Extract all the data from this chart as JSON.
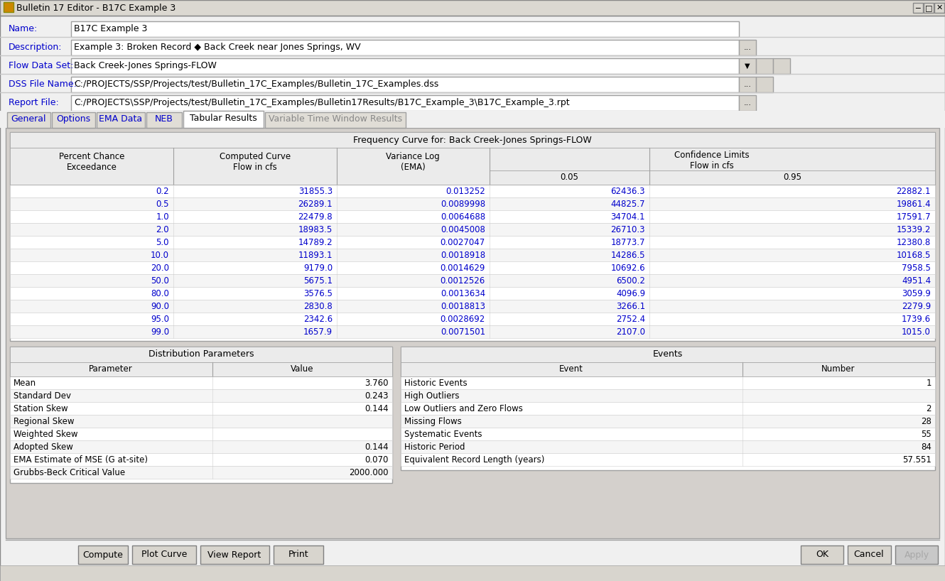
{
  "title_bar": "Bulletin 17 Editor - B17C Example 3",
  "name_label": "Name:",
  "name_value": "B17C Example 3",
  "desc_label": "Description:",
  "desc_value": "Example 3: Broken Record ◆ Back Creek near Jones Springs, WV",
  "flow_label": "Flow Data Set:",
  "flow_value": "Back Creek-Jones Springs-FLOW",
  "dss_label": "DSS File Name:",
  "dss_value": "C:/PROJECTS/SSP/Projects/test/Bulletin_17C_Examples/Bulletin_17C_Examples.dss",
  "report_label": "Report File:",
  "report_value": "C:/PROJECTS\\SSP/Projects/test/Bulletin_17C_Examples/Bulletin17Results/B17C_Example_3\\B17C_Example_3.rpt",
  "tabs": [
    "General",
    "Options",
    "EMA Data",
    "NEB",
    "Tabular Results",
    "Variable Time Window Results"
  ],
  "active_tab": "Tabular Results",
  "freq_table_title": "Frequency Curve for: Back Creek-Jones Springs-FLOW",
  "freq_data": [
    [
      "0.2",
      "31855.3",
      "0.013252",
      "62436.3",
      "22882.1"
    ],
    [
      "0.5",
      "26289.1",
      "0.0089998",
      "44825.7",
      "19861.4"
    ],
    [
      "1.0",
      "22479.8",
      "0.0064688",
      "34704.1",
      "17591.7"
    ],
    [
      "2.0",
      "18983.5",
      "0.0045008",
      "26710.3",
      "15339.2"
    ],
    [
      "5.0",
      "14789.2",
      "0.0027047",
      "18773.7",
      "12380.8"
    ],
    [
      "10.0",
      "11893.1",
      "0.0018918",
      "14286.5",
      "10168.5"
    ],
    [
      "20.0",
      "9179.0",
      "0.0014629",
      "10692.6",
      "7958.5"
    ],
    [
      "50.0",
      "5675.1",
      "0.0012526",
      "6500.2",
      "4951.4"
    ],
    [
      "80.0",
      "3576.5",
      "0.0013634",
      "4096.9",
      "3059.9"
    ],
    [
      "90.0",
      "2830.8",
      "0.0018813",
      "3266.1",
      "2279.9"
    ],
    [
      "95.0",
      "2342.6",
      "0.0028692",
      "2752.4",
      "1739.6"
    ],
    [
      "99.0",
      "1657.9",
      "0.0071501",
      "2107.0",
      "1015.0"
    ]
  ],
  "dist_table_title": "Distribution Parameters",
  "dist_data": [
    [
      "Mean",
      "3.760"
    ],
    [
      "Standard Dev",
      "0.243"
    ],
    [
      "Station Skew",
      "0.144"
    ],
    [
      "Regional Skew",
      ""
    ],
    [
      "Weighted Skew",
      ""
    ],
    [
      "Adopted Skew",
      "0.144"
    ],
    [
      "EMA Estimate of MSE (G at-site)",
      "0.070"
    ],
    [
      "Grubbs-Beck Critical Value",
      "2000.000"
    ]
  ],
  "events_table_title": "Events",
  "events_data": [
    [
      "Historic Events",
      "1"
    ],
    [
      "High Outliers",
      ""
    ],
    [
      "Low Outliers and Zero Flows",
      "2"
    ],
    [
      "Missing Flows",
      "28"
    ],
    [
      "Systematic Events",
      "55"
    ],
    [
      "Historic Period",
      "84"
    ],
    [
      "Equivalent Record Length (years)",
      "57.551"
    ]
  ],
  "buttons_left": [
    "Compute",
    "Plot Curve",
    "View Report",
    "Print"
  ],
  "buttons_right": [
    "OK",
    "Cancel",
    "Apply"
  ],
  "c_bg": "#f0f0f0",
  "c_titlebar": "#dbd8d1",
  "c_tabhdr": "#e8e8e8",
  "c_tabactive": "#ffffff",
  "c_tabinactive": "#e0ddd6",
  "c_input": "#ffffff",
  "c_border": "#a0a0a0",
  "c_darkborder": "#606060",
  "c_rowalt": "#f5f5f5",
  "c_blue": "#0000cc",
  "c_black": "#000000",
  "c_gray_btn": "#d8d5ce",
  "c_disabled": "#a8a8a8"
}
